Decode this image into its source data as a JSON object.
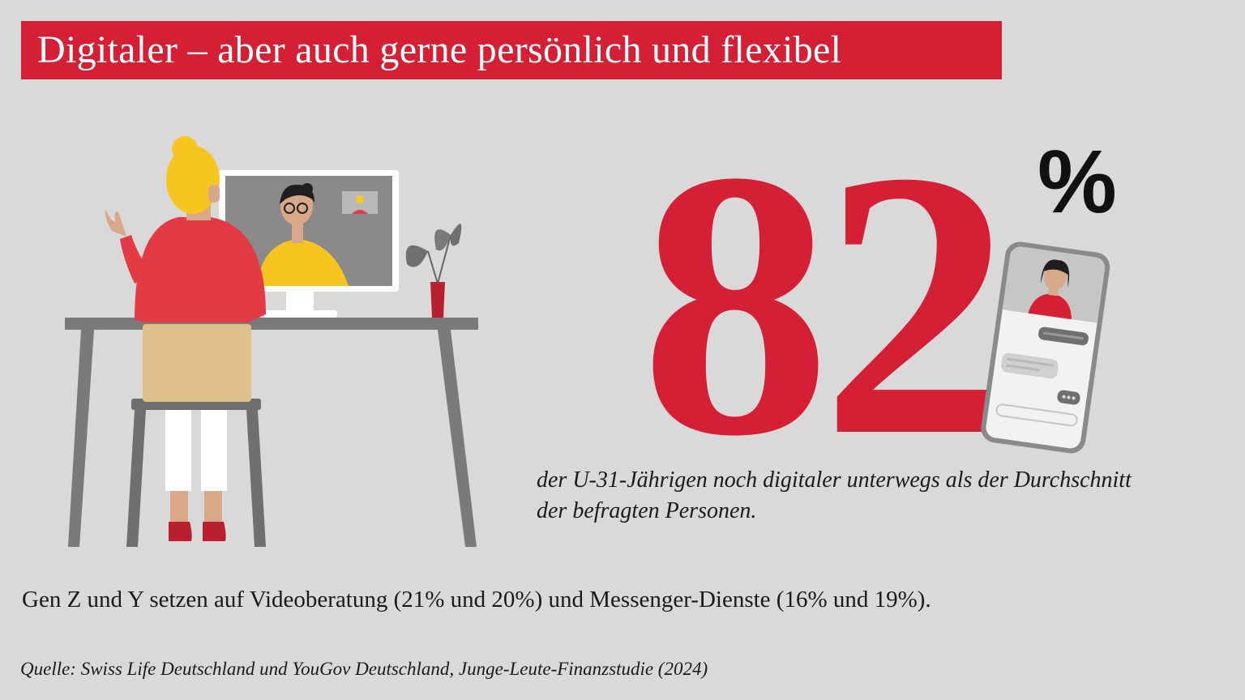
{
  "title": "Digitaler – aber auch gerne persönlich und flexibel",
  "stat": {
    "value": "82",
    "unit": "%"
  },
  "caption": {
    "line1": "der U-31-Jährigen noch digitaler unterwegs als der Durchschnitt",
    "line2": "der befragten Personen."
  },
  "statement": "Gen Z und Y setzen auf Videoberatung (21% und 20%) und Messenger-Dienste (16% und 19%).",
  "source": "Quelle: Swiss Life Deutschland und YouGov Deutschland, Junge-Leute-Finanzstudie (2024)",
  "colors": {
    "accent": "#d51f35",
    "background": "#d9d9d9",
    "text": "#1a1a1a",
    "hair": "#f7c520"
  },
  "icons": [
    "video-call-illustration",
    "smartphone-chat-illustration"
  ]
}
